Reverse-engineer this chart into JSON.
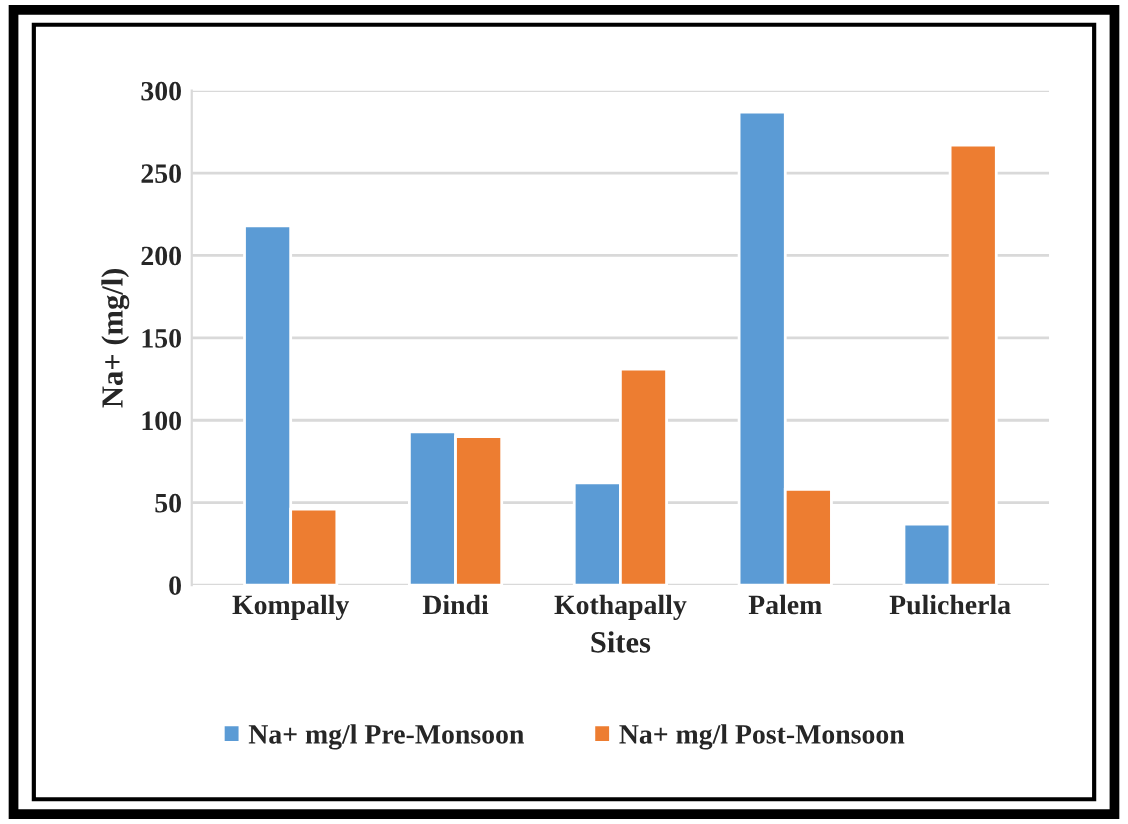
{
  "chart_data": {
    "type": "bar",
    "xlabel": "Sites",
    "ylabel": "Na+ (mg/l)",
    "categories": [
      "Kompally",
      "Dindi",
      "Kothapally",
      "Palem",
      "Pulicherla"
    ],
    "series": [
      {
        "name": "Na+ mg/l Pre-Monsoon",
        "color": "#5b9bd5",
        "values": [
          218,
          93,
          62,
          287,
          37
        ]
      },
      {
        "name": "Na+ mg/l Post-Monsoon",
        "color": "#ed7d31",
        "values": [
          46,
          90,
          131,
          58,
          267
        ]
      }
    ],
    "ylim": [
      0,
      300
    ],
    "yticks": [
      0,
      50,
      100,
      150,
      200,
      250,
      300
    ],
    "grid": "y",
    "legend": "bottom"
  }
}
